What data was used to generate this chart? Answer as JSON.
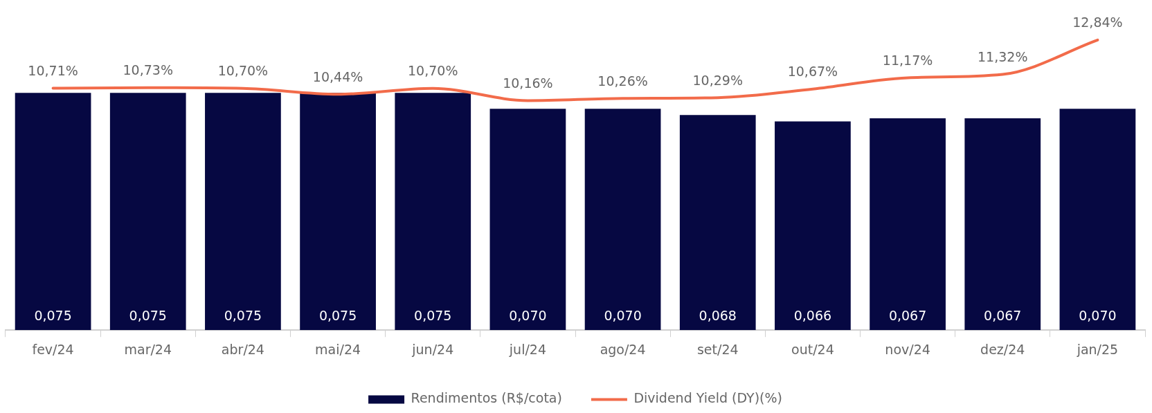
{
  "chart_data": {
    "type": "bar",
    "categories": [
      "fev/24",
      "mar/24",
      "abr/24",
      "mai/24",
      "jun/24",
      "jul/24",
      "ago/24",
      "set/24",
      "out/24",
      "nov/24",
      "dez/24",
      "jan/25"
    ],
    "series": [
      {
        "name": "Rendimentos (R$/cota)",
        "color": "#060842",
        "value_labels": [
          "0,075",
          "0,075",
          "0,075",
          "0,075",
          "0,075",
          "0,070",
          "0,070",
          "0,068",
          "0,066",
          "0,067",
          "0,067",
          "0,070"
        ],
        "values": [
          0.075,
          0.075,
          0.075,
          0.075,
          0.075,
          0.07,
          0.07,
          0.068,
          0.066,
          0.067,
          0.067,
          0.07
        ]
      },
      {
        "name": "Dividend Yield (DY)(%)",
        "type": "line",
        "axis": "y2",
        "color": "#f26b4a",
        "value_labels": [
          "10,71%",
          "10,73%",
          "10,70%",
          "10,44%",
          "10,70%",
          "10,16%",
          "10,26%",
          "10,29%",
          "10,67%",
          "11,17%",
          "11,32%",
          "12,84%"
        ],
        "values": [
          10.71,
          10.73,
          10.7,
          10.44,
          10.7,
          10.16,
          10.26,
          10.29,
          10.67,
          11.17,
          11.32,
          12.84
        ]
      }
    ],
    "tick_labels": "x",
    "grid": false,
    "legend": "bottom",
    "marker": "none",
    "line_style": "solid",
    "data_labels": true
  }
}
